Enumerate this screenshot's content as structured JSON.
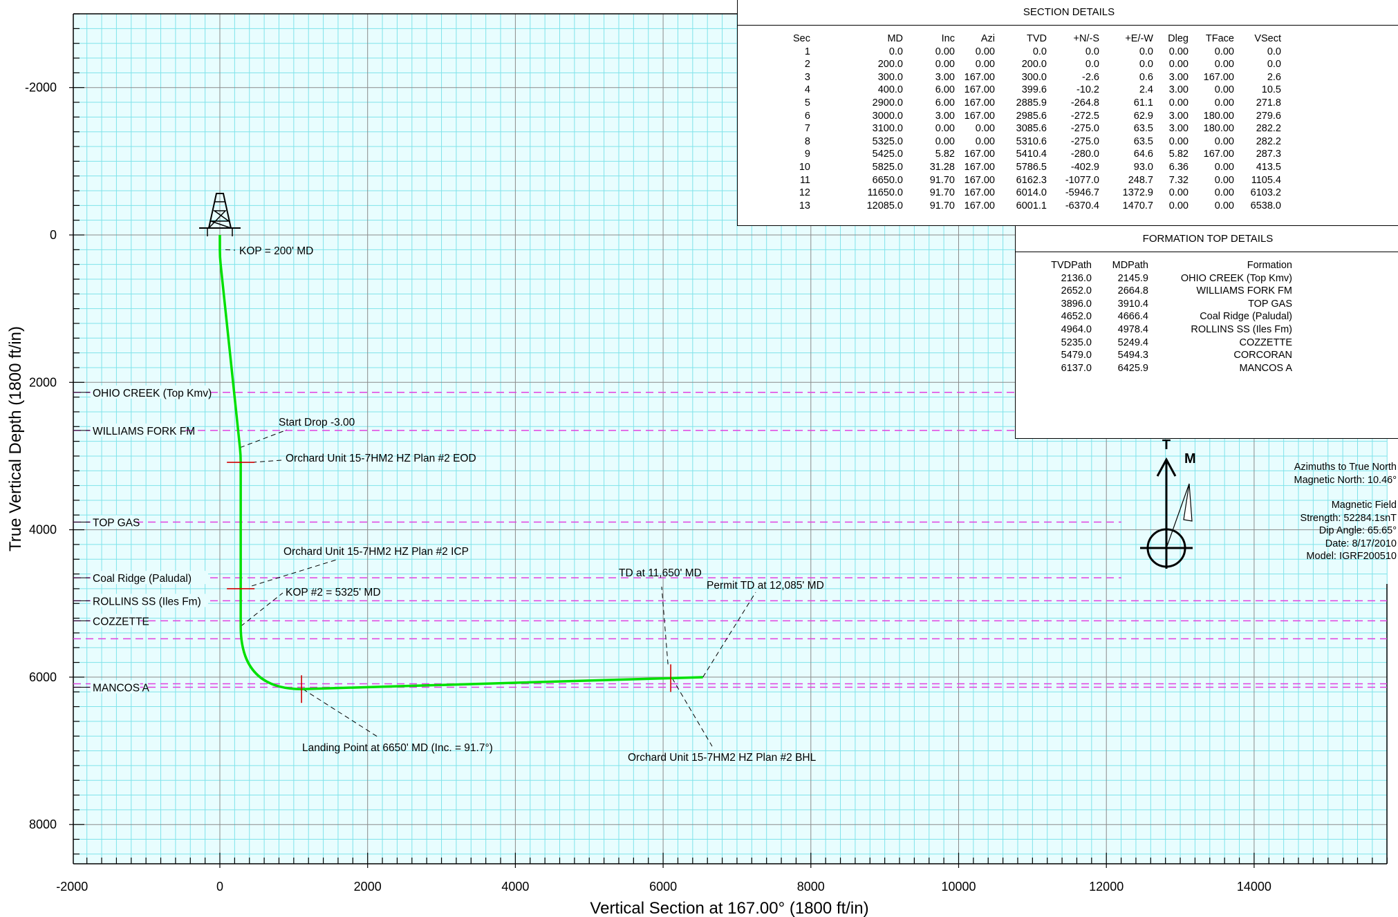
{
  "chart_data": {
    "type": "line",
    "title": "",
    "xlabel": "Vertical Section at 167.00° (1800 ft/in)",
    "ylabel": "True Vertical Depth (1800 ft/in)",
    "xlim": [
      -2000,
      15800
    ],
    "ylim": [
      8500,
      -3000
    ],
    "y_inverted": true,
    "grid": true,
    "x_ticks": [
      -2000,
      0,
      2000,
      4000,
      6000,
      8000,
      10000,
      12000,
      14000
    ],
    "y_ticks": [
      -2000,
      0,
      2000,
      4000,
      6000,
      8000
    ],
    "colors": {
      "grid_minor": "#7fe3ea",
      "grid_major": "#8a8a8a",
      "well_path": "#00e000",
      "formation_line": "#e040e0",
      "marker": "#d00000",
      "background": "#e8fdfe"
    },
    "series": [
      {
        "x": [
          0,
          0,
          2.6,
          10.5,
          271.8,
          279.6,
          282.2,
          282.2,
          287.3,
          413.5,
          1105.4,
          6103.2,
          6538.0
        ],
        "y": [
          0.0,
          200.0,
          300.0,
          399.6,
          2885.9,
          2985.6,
          3085.6,
          5310.6,
          5410.4,
          5786.5,
          6162.3,
          6014.0,
          6001.1
        ]
      }
    ],
    "formation_tops": [
      {
        "name": "OHIO CREEK (Top Kmv)",
        "tvd": 2136.0
      },
      {
        "name": "WILLIAMS FORK FM",
        "tvd": 2652.0
      },
      {
        "name": "TOP GAS",
        "tvd": 3896.0
      },
      {
        "name": "Coal Ridge (Paludal)",
        "tvd": 4652.0
      },
      {
        "name": "ROLLINS SS (Iles Fm)",
        "tvd": 4964.0
      },
      {
        "name": "COZZETTE",
        "tvd": 5235.0
      },
      {
        "name": "CORCORAN",
        "tvd": 5479.0
      },
      {
        "name": "MANCOS A",
        "tvd": 6137.0
      }
    ],
    "annotations": [
      {
        "text": "KOP = 200' MD",
        "vs": 0,
        "tvd": 200
      },
      {
        "text": "Start Drop -3.00",
        "vs": 271.8,
        "tvd": 2885.9
      },
      {
        "text": "Orchard Unit 15-7HM2 HZ Plan #2 EOD",
        "vs": 282.2,
        "tvd": 3085.6
      },
      {
        "text": "Orchard Unit 15-7HM2 HZ Plan #2 ICP",
        "vs": 282.2,
        "tvd": 4800
      },
      {
        "text": "KOP #2 = 5325' MD",
        "vs": 282.2,
        "tvd": 5310.6
      },
      {
        "text": "TD at 11,650' MD",
        "vs": 6103.2,
        "tvd": 6014.0
      },
      {
        "text": "Permit TD at 12,085' MD",
        "vs": 6538.0,
        "tvd": 6001.1
      },
      {
        "text": "Landing Point at 6650' MD (Inc. = 91.7°)",
        "vs": 1105.4,
        "tvd": 6162.3
      },
      {
        "text": "Orchard Unit 15-7HM2 HZ Plan #2 BHL",
        "vs": 6103.2,
        "tvd": 6014.0
      }
    ]
  },
  "section_details": {
    "title": "SECTION DETAILS",
    "columns": [
      "Sec",
      "MD",
      "Inc",
      "Azi",
      "TVD",
      "+N/-S",
      "+E/-W",
      "Dleg",
      "TFace",
      "VSect"
    ],
    "rows": [
      [
        "1",
        "0.0",
        "0.00",
        "0.00",
        "0.0",
        "0.0",
        "0.0",
        "0.00",
        "0.00",
        "0.0"
      ],
      [
        "2",
        "200.0",
        "0.00",
        "0.00",
        "200.0",
        "0.0",
        "0.0",
        "0.00",
        "0.00",
        "0.0"
      ],
      [
        "3",
        "300.0",
        "3.00",
        "167.00",
        "300.0",
        "-2.6",
        "0.6",
        "3.00",
        "167.00",
        "2.6"
      ],
      [
        "4",
        "400.0",
        "6.00",
        "167.00",
        "399.6",
        "-10.2",
        "2.4",
        "3.00",
        "0.00",
        "10.5"
      ],
      [
        "5",
        "2900.0",
        "6.00",
        "167.00",
        "2885.9",
        "-264.8",
        "61.1",
        "0.00",
        "0.00",
        "271.8"
      ],
      [
        "6",
        "3000.0",
        "3.00",
        "167.00",
        "2985.6",
        "-272.5",
        "62.9",
        "3.00",
        "180.00",
        "279.6"
      ],
      [
        "7",
        "3100.0",
        "0.00",
        "0.00",
        "3085.6",
        "-275.0",
        "63.5",
        "3.00",
        "180.00",
        "282.2"
      ],
      [
        "8",
        "5325.0",
        "0.00",
        "0.00",
        "5310.6",
        "-275.0",
        "63.5",
        "0.00",
        "0.00",
        "282.2"
      ],
      [
        "9",
        "5425.0",
        "5.82",
        "167.00",
        "5410.4",
        "-280.0",
        "64.6",
        "5.82",
        "167.00",
        "287.3"
      ],
      [
        "10",
        "5825.0",
        "31.28",
        "167.00",
        "5786.5",
        "-402.9",
        "93.0",
        "6.36",
        "0.00",
        "413.5"
      ],
      [
        "11",
        "6650.0",
        "91.70",
        "167.00",
        "6162.3",
        "-1077.0",
        "248.7",
        "7.32",
        "0.00",
        "1105.4"
      ],
      [
        "12",
        "11650.0",
        "91.70",
        "167.00",
        "6014.0",
        "-5946.7",
        "1372.9",
        "0.00",
        "0.00",
        "6103.2"
      ],
      [
        "13",
        "12085.0",
        "91.70",
        "167.00",
        "6001.1",
        "-6370.4",
        "1470.7",
        "0.00",
        "0.00",
        "6538.0"
      ]
    ]
  },
  "formation_details": {
    "title": "FORMATION TOP DETAILS",
    "columns": [
      "TVDPath",
      "MDPath",
      "Formation"
    ],
    "rows": [
      [
        "2136.0",
        "2145.9",
        "OHIO CREEK (Top Kmv)"
      ],
      [
        "2652.0",
        "2664.8",
        "WILLIAMS FORK FM"
      ],
      [
        "3896.0",
        "3910.4",
        "TOP GAS"
      ],
      [
        "4652.0",
        "4666.4",
        "Coal Ridge (Paludal)"
      ],
      [
        "4964.0",
        "4978.4",
        "ROLLINS SS (Iles Fm)"
      ],
      [
        "5235.0",
        "5249.4",
        "COZZETTE"
      ],
      [
        "5479.0",
        "5494.3",
        "CORCORAN"
      ],
      [
        "6137.0",
        "6425.9",
        "MANCOS A"
      ]
    ]
  },
  "north_arrow": {
    "true_label": "T",
    "magnetic_label": "M"
  },
  "azimuth_notes": [
    "Azimuths to True North",
    "Magnetic North: 10.46°"
  ],
  "magnetic_field_notes": [
    "Magnetic Field",
    "Strength: 52284.1snT",
    "Dip Angle: 65.65°",
    "Date: 8/17/2010",
    "Model: IGRF200510"
  ]
}
